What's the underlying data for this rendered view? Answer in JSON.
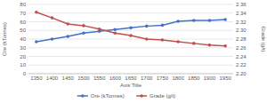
{
  "chart_data": {
    "type": "line",
    "x_label": "Axis Title",
    "y_label": "Ore (kTonnes)",
    "y2_label": "Grade (g/t)",
    "categories": [
      "1350",
      "1400",
      "1450",
      "1500",
      "1550",
      "1600",
      "1650",
      "1700",
      "1750",
      "1800",
      "1850",
      "1900",
      "1950"
    ],
    "series": [
      {
        "name": "Ore (kTonnes)",
        "color": "#4472c4",
        "marker": "circle",
        "values": [
          37,
          40,
          43,
          47,
          49,
          51,
          53,
          55,
          56,
          60.5,
          61.5,
          61.5,
          62.5
        ]
      },
      {
        "name": "Grade (g/t)",
        "color": "#c0504d",
        "marker": "circle",
        "axis": "y2",
        "values": [
          2.342,
          2.329,
          2.315,
          2.311,
          2.303,
          2.294,
          2.288,
          2.28,
          2.278,
          2.274,
          2.27,
          2.266,
          2.264
        ]
      }
    ],
    "ylim": [
      0,
      80
    ],
    "yticks": [
      0,
      10,
      20,
      30,
      40,
      50,
      60,
      70,
      80
    ],
    "y2lim": [
      2.2,
      2.36
    ],
    "y2ticks": [
      {
        "value": 2.2,
        "label": "2.20"
      },
      {
        "value": 2.22,
        "label": "2.22"
      },
      {
        "value": 2.24,
        "label": "2.24"
      },
      {
        "value": 2.26,
        "label": "2.26"
      },
      {
        "value": 2.28,
        "label": "2.28"
      },
      {
        "value": 2.3,
        "label": "2.30"
      },
      {
        "value": 2.32,
        "label": "2.32"
      },
      {
        "value": 2.34,
        "label": "2.34"
      },
      {
        "value": 2.36,
        "label": "2.36"
      }
    ],
    "grid": true,
    "legend": "bottom"
  }
}
